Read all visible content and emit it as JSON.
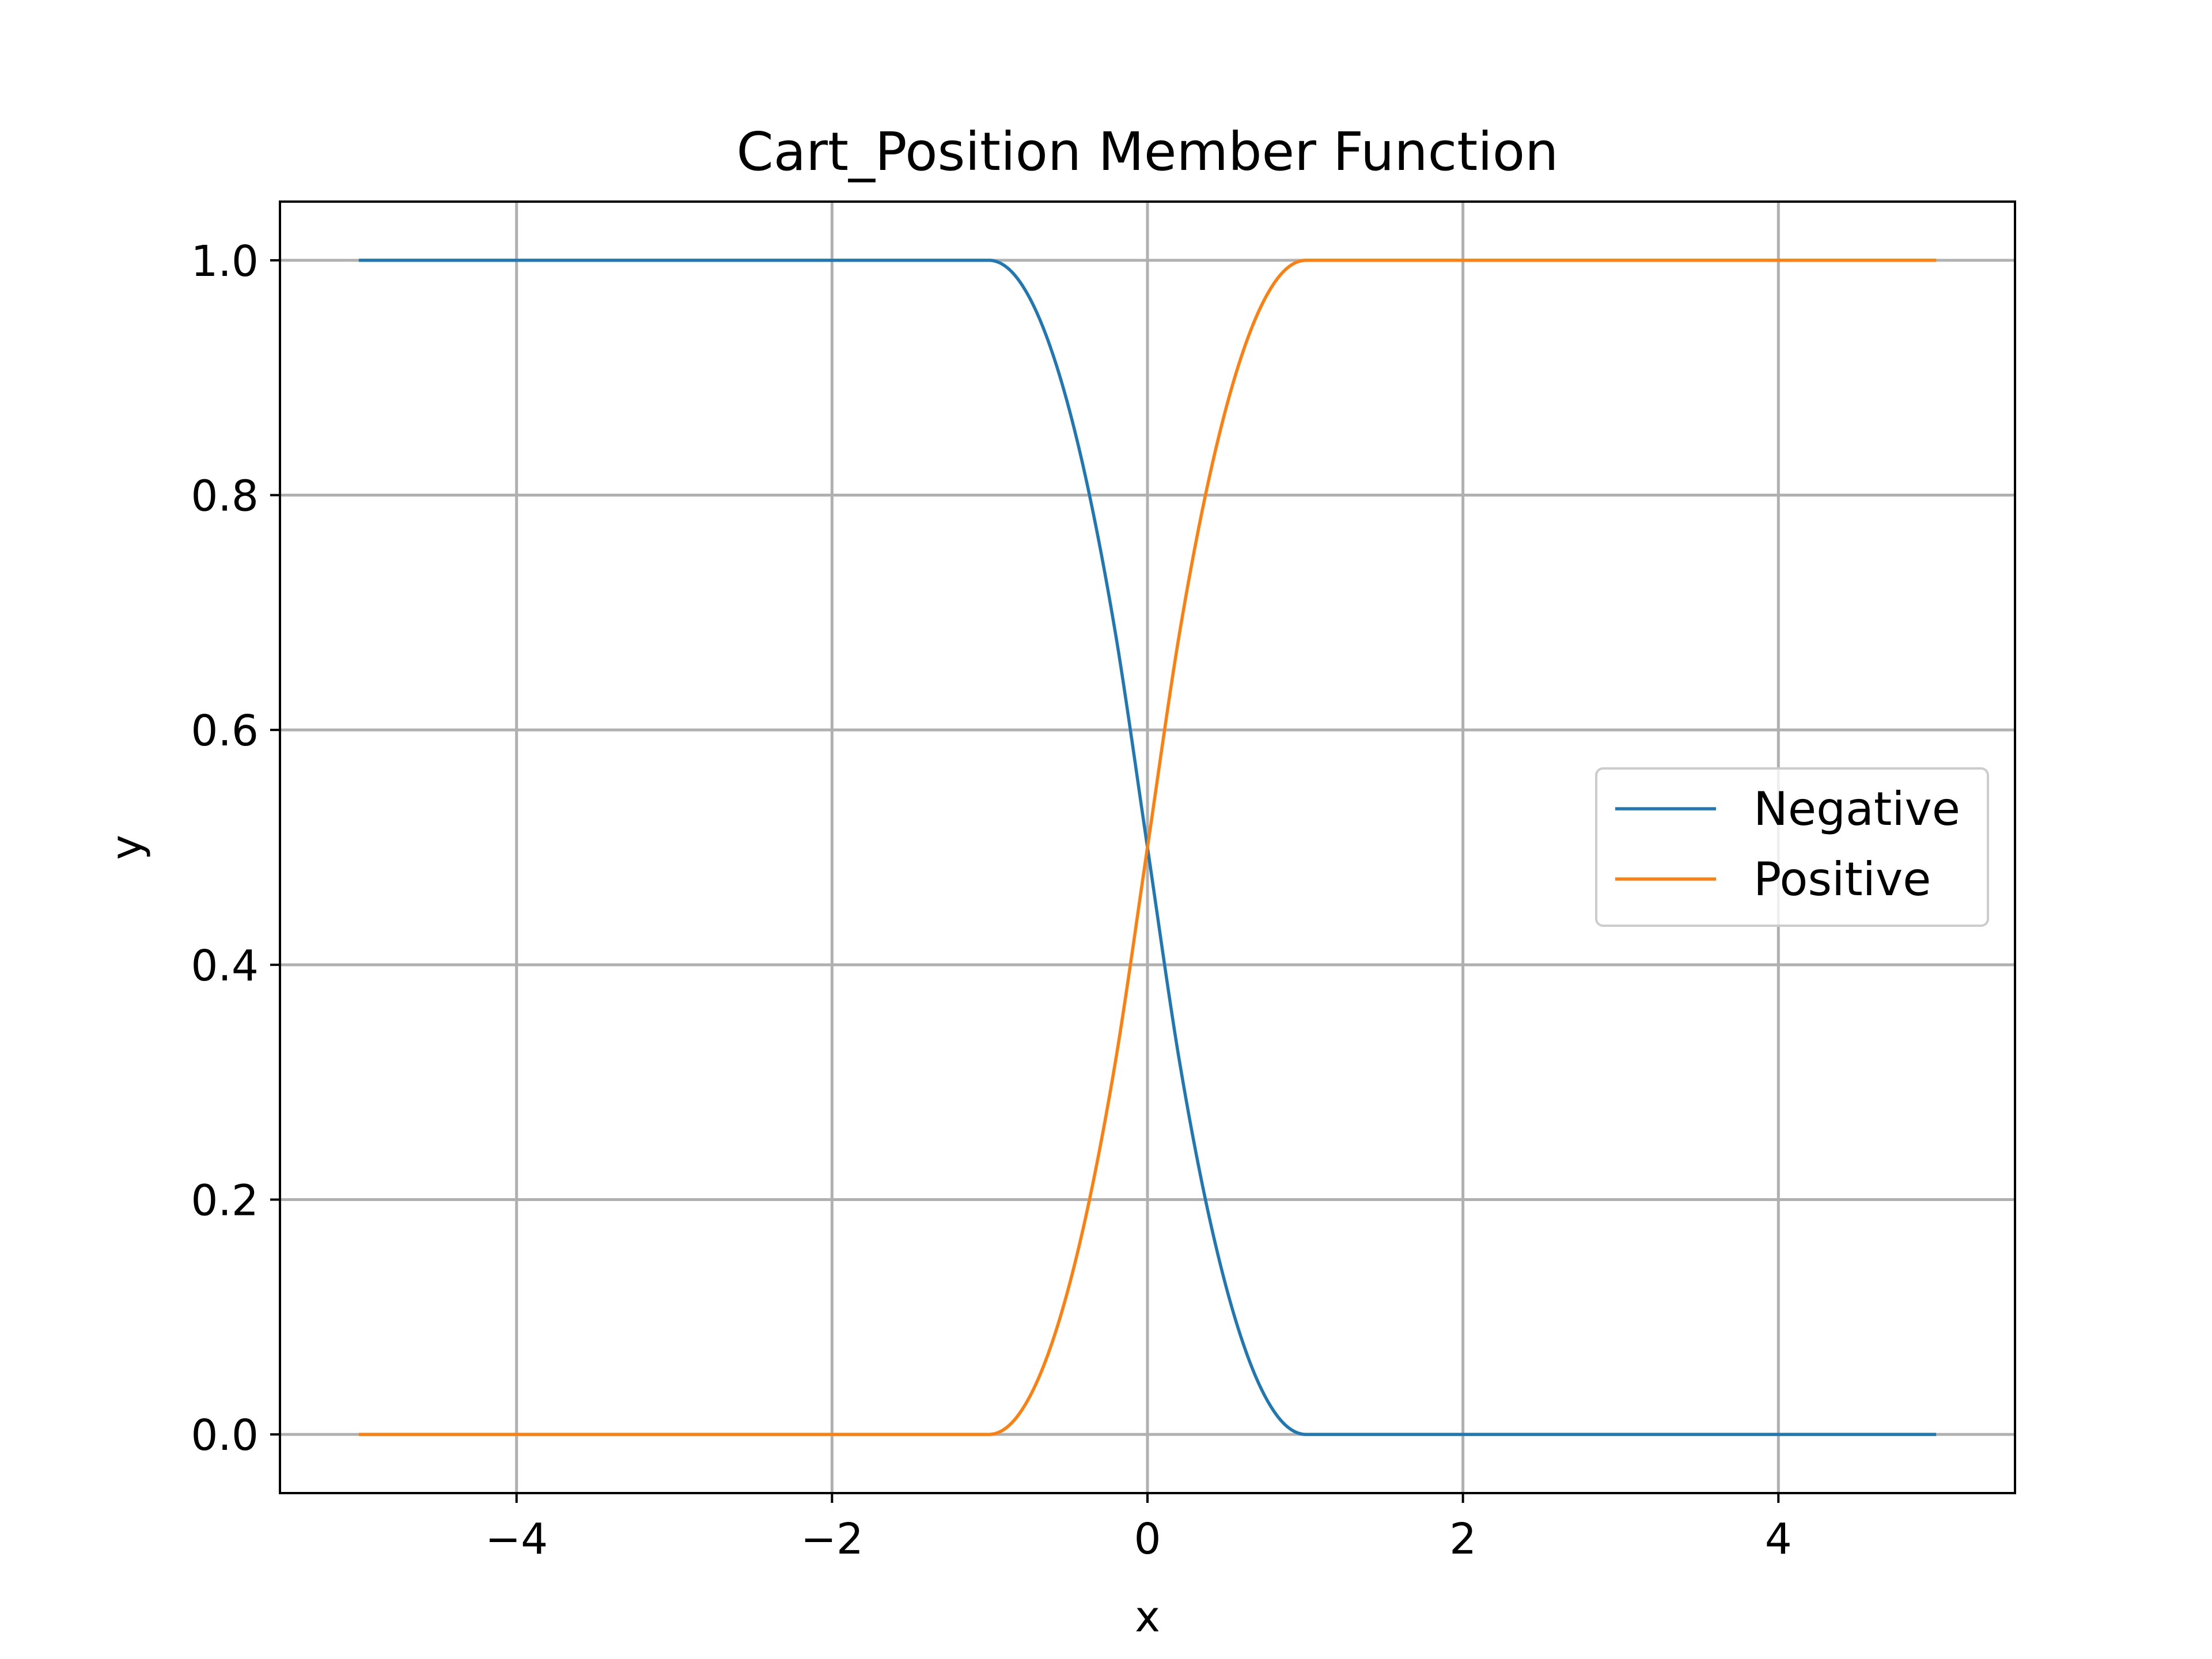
{
  "chart_data": {
    "type": "line",
    "title": "Cart_Position Member Function",
    "xlabel": "x",
    "ylabel": "y",
    "xlim": [
      -5.5,
      5.5
    ],
    "ylim": [
      -0.05,
      1.05
    ],
    "x_ticks": [
      -4,
      -2,
      0,
      2,
      4
    ],
    "x_tick_labels": [
      "−4",
      "−2",
      "0",
      "2",
      "4"
    ],
    "y_ticks": [
      0.0,
      0.2,
      0.4,
      0.6,
      0.8,
      1.0
    ],
    "y_tick_labels": [
      "0.0",
      "0.2",
      "0.4",
      "0.6",
      "0.8",
      "1.0"
    ],
    "grid": true,
    "legend_position": "center-right",
    "x": [
      -5.0,
      -1.0,
      -0.8,
      -0.6,
      -0.4,
      -0.2,
      0.0,
      0.2,
      0.4,
      0.6,
      0.8,
      1.0,
      5.0
    ],
    "series": [
      {
        "name": "Negative",
        "color": "#1f77b4",
        "values": [
          1.0,
          1.0,
          0.98,
          0.92,
          0.82,
          0.68,
          0.5,
          0.32,
          0.18,
          0.08,
          0.02,
          0.0,
          0.0
        ]
      },
      {
        "name": "Positive",
        "color": "#ff7f0e",
        "values": [
          0.0,
          0.0,
          0.02,
          0.08,
          0.18,
          0.32,
          0.5,
          0.68,
          0.82,
          0.92,
          0.98,
          1.0,
          1.0
        ]
      }
    ]
  }
}
